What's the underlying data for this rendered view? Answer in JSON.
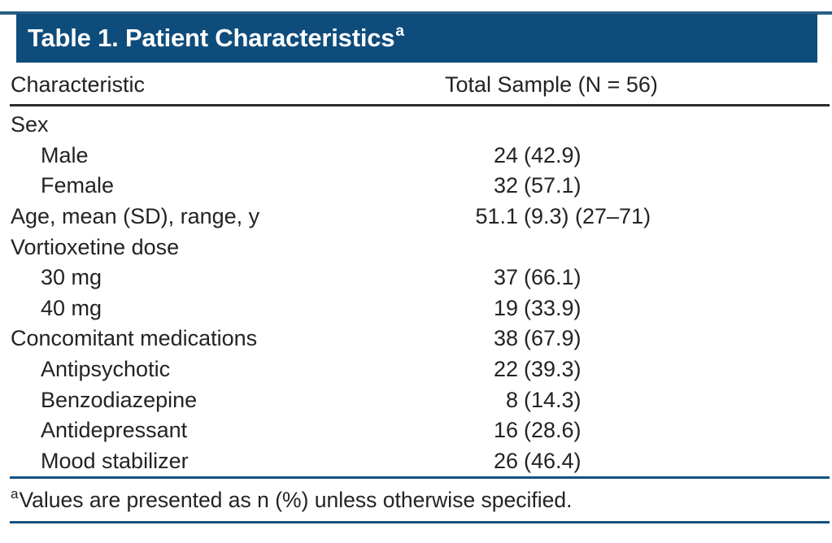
{
  "table": {
    "title": {
      "text": "Table 1. Patient Characteristics",
      "superscript": "a"
    },
    "columns": {
      "characteristic": "Characteristic",
      "total_sample": "Total Sample (N = 56)"
    },
    "rows": [
      {
        "label": "Sex",
        "indent": 0,
        "num": "",
        "rest": ""
      },
      {
        "label": "Male",
        "indent": 1,
        "num": "24",
        "rest": "(42.9)"
      },
      {
        "label": "Female",
        "indent": 1,
        "num": "32",
        "rest": "(57.1)"
      },
      {
        "label": "Age, mean (SD), range, y",
        "indent": 0,
        "num": "51.1",
        "rest": "(9.3) (27–71)"
      },
      {
        "label": "Vortioxetine dose",
        "indent": 0,
        "num": "",
        "rest": ""
      },
      {
        "label": "30 mg",
        "indent": 1,
        "num": "37",
        "rest": "(66.1)"
      },
      {
        "label": "40 mg",
        "indent": 1,
        "num": "19",
        "rest": "(33.9)"
      },
      {
        "label": "Concomitant medications",
        "indent": 0,
        "num": "38",
        "rest": "(67.9)"
      },
      {
        "label": "Antipsychotic",
        "indent": 1,
        "num": "22",
        "rest": "(39.3)"
      },
      {
        "label": "Benzodiazepine",
        "indent": 1,
        "num": "8",
        "rest": "(14.3)"
      },
      {
        "label": "Antidepressant",
        "indent": 1,
        "num": "16",
        "rest": "(28.6)"
      },
      {
        "label": "Mood stabilizer",
        "indent": 1,
        "num": "26",
        "rest": "(46.4)"
      }
    ],
    "footnote": {
      "superscript": "a",
      "text": "Values are presented as n (%) unless otherwise specified."
    }
  },
  "chart_data": {
    "type": "table",
    "title": "Table 1. Patient Characteristics",
    "columns": [
      "Characteristic",
      "Total Sample (N = 56)"
    ],
    "rows": [
      [
        "Sex",
        ""
      ],
      [
        "Male",
        "24 (42.9)"
      ],
      [
        "Female",
        "32 (57.1)"
      ],
      [
        "Age, mean (SD), range, y",
        "51.1 (9.3) (27–71)"
      ],
      [
        "Vortioxetine dose",
        ""
      ],
      [
        "30 mg",
        "37 (66.1)"
      ],
      [
        "40 mg",
        "19 (33.9)"
      ],
      [
        "Concomitant medications",
        "38 (67.9)"
      ],
      [
        "Antipsychotic",
        "22 (39.3)"
      ],
      [
        "Benzodiazepine",
        "8 (14.3)"
      ],
      [
        "Antidepressant",
        "16 (28.6)"
      ],
      [
        "Mood stabilizer",
        "26 (46.4)"
      ]
    ],
    "footnote": "aValues are presented as n (%) unless otherwise specified."
  },
  "colors": {
    "banner": "#0e4c7c",
    "banner-edge": "#275f86",
    "rule-black": "#2b2b2b",
    "rule-blue": "#15517e",
    "text": "#232323",
    "title-text": "#ffffff"
  }
}
